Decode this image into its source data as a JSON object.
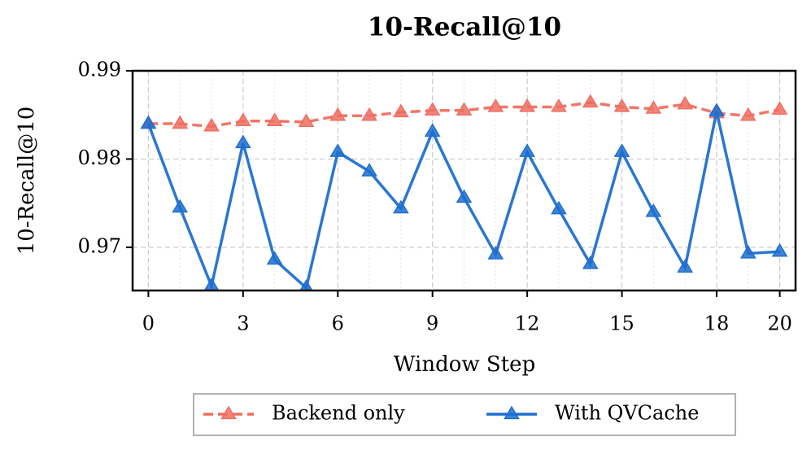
{
  "chart_data": {
    "type": "line",
    "title": "10-Recall@10",
    "x_label": "Window Step",
    "y_label": "10-Recall@10",
    "x": [
      0,
      1,
      2,
      3,
      4,
      5,
      6,
      7,
      8,
      9,
      10,
      11,
      12,
      13,
      14,
      15,
      16,
      17,
      18,
      19,
      20
    ],
    "xlim": [
      -0.5,
      20.5
    ],
    "xticks": [
      0,
      3,
      6,
      9,
      12,
      15,
      18,
      20
    ],
    "ylim": [
      0.9651,
      0.99
    ],
    "yticks": [
      0.97,
      0.98,
      0.99
    ],
    "grid": true,
    "legend": "bottom",
    "series": [
      {
        "name": "Backend only",
        "color": "#ef6f62",
        "linestyle": "dashed",
        "values": [
          0.984,
          0.984,
          0.9837,
          0.9843,
          0.9843,
          0.9842,
          0.9849,
          0.9849,
          0.9853,
          0.9855,
          0.9855,
          0.9859,
          0.9859,
          0.9859,
          0.9864,
          0.9859,
          0.9857,
          0.9862,
          0.9852,
          0.9849,
          0.9856
        ]
      },
      {
        "name": "With QVCache",
        "color": "#1f6fd0",
        "linestyle": "solid",
        "values": [
          0.984,
          0.9745,
          0.9656,
          0.9818,
          0.9686,
          0.9654,
          0.9808,
          0.9786,
          0.9744,
          0.9831,
          0.9756,
          0.9692,
          0.9808,
          0.9743,
          0.9681,
          0.9808,
          0.974,
          0.9677,
          0.9854,
          0.9693,
          0.9695
        ]
      }
    ]
  }
}
